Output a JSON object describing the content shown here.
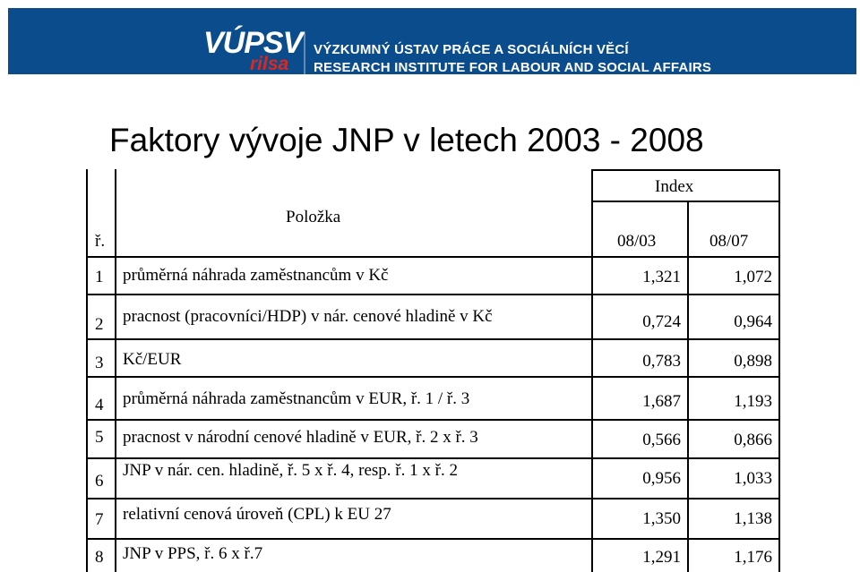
{
  "header": {
    "logo_main": "VÚPSV",
    "logo_sub": "rilsa",
    "institute_cz": "VÝZKUMNÝ ÚSTAV PRÁCE A SOCIÁLNÍCH VĚCÍ",
    "institute_en": "RESEARCH INSTITUTE FOR LABOUR AND SOCIAL AFFAIRS"
  },
  "title": "Faktory vývoje JNP v letech 2003 - 2008",
  "table": {
    "col_row_no": "ř.",
    "col_item": "Položka",
    "col_index": "Index",
    "col_a": "08/03",
    "col_b": "08/07",
    "rows": [
      {
        "no": "1",
        "item": "průměrná náhrada zaměstnancům v Kč",
        "a": "1,321",
        "b": "1,072"
      },
      {
        "no": "2",
        "item": "pracnost (pracovníci/HDP) v nár. cenové hladině v Kč",
        "a": "0,724",
        "b": "0,964"
      },
      {
        "no": "3",
        "item": "Kč/EUR",
        "a": "0,783",
        "b": "0,898"
      },
      {
        "no": "4",
        "item": "průměrná náhrada zaměstnancům v EUR, ř. 1 / ř. 3",
        "a": "1,687",
        "b": "1,193"
      },
      {
        "no": "5",
        "item": "pracnost v národní cenové hladině v EUR, ř. 2 x ř. 3",
        "a": "0,566",
        "b": "0,866"
      },
      {
        "no": "6",
        "item": "JNP v nár. cen. hladině, ř. 5 x ř. 4, resp. ř. 1 x  ř. 2",
        "a": "0,956",
        "b": "1,033"
      },
      {
        "no": "7",
        "item": "relativní cenová úroveň (CPL) k EU 27",
        "a": "1,350",
        "b": "1,138"
      },
      {
        "no": "8",
        "item": "JNP v PPS, ř. 6 x ř.7",
        "a": "1,291",
        "b": "1,176"
      }
    ]
  }
}
